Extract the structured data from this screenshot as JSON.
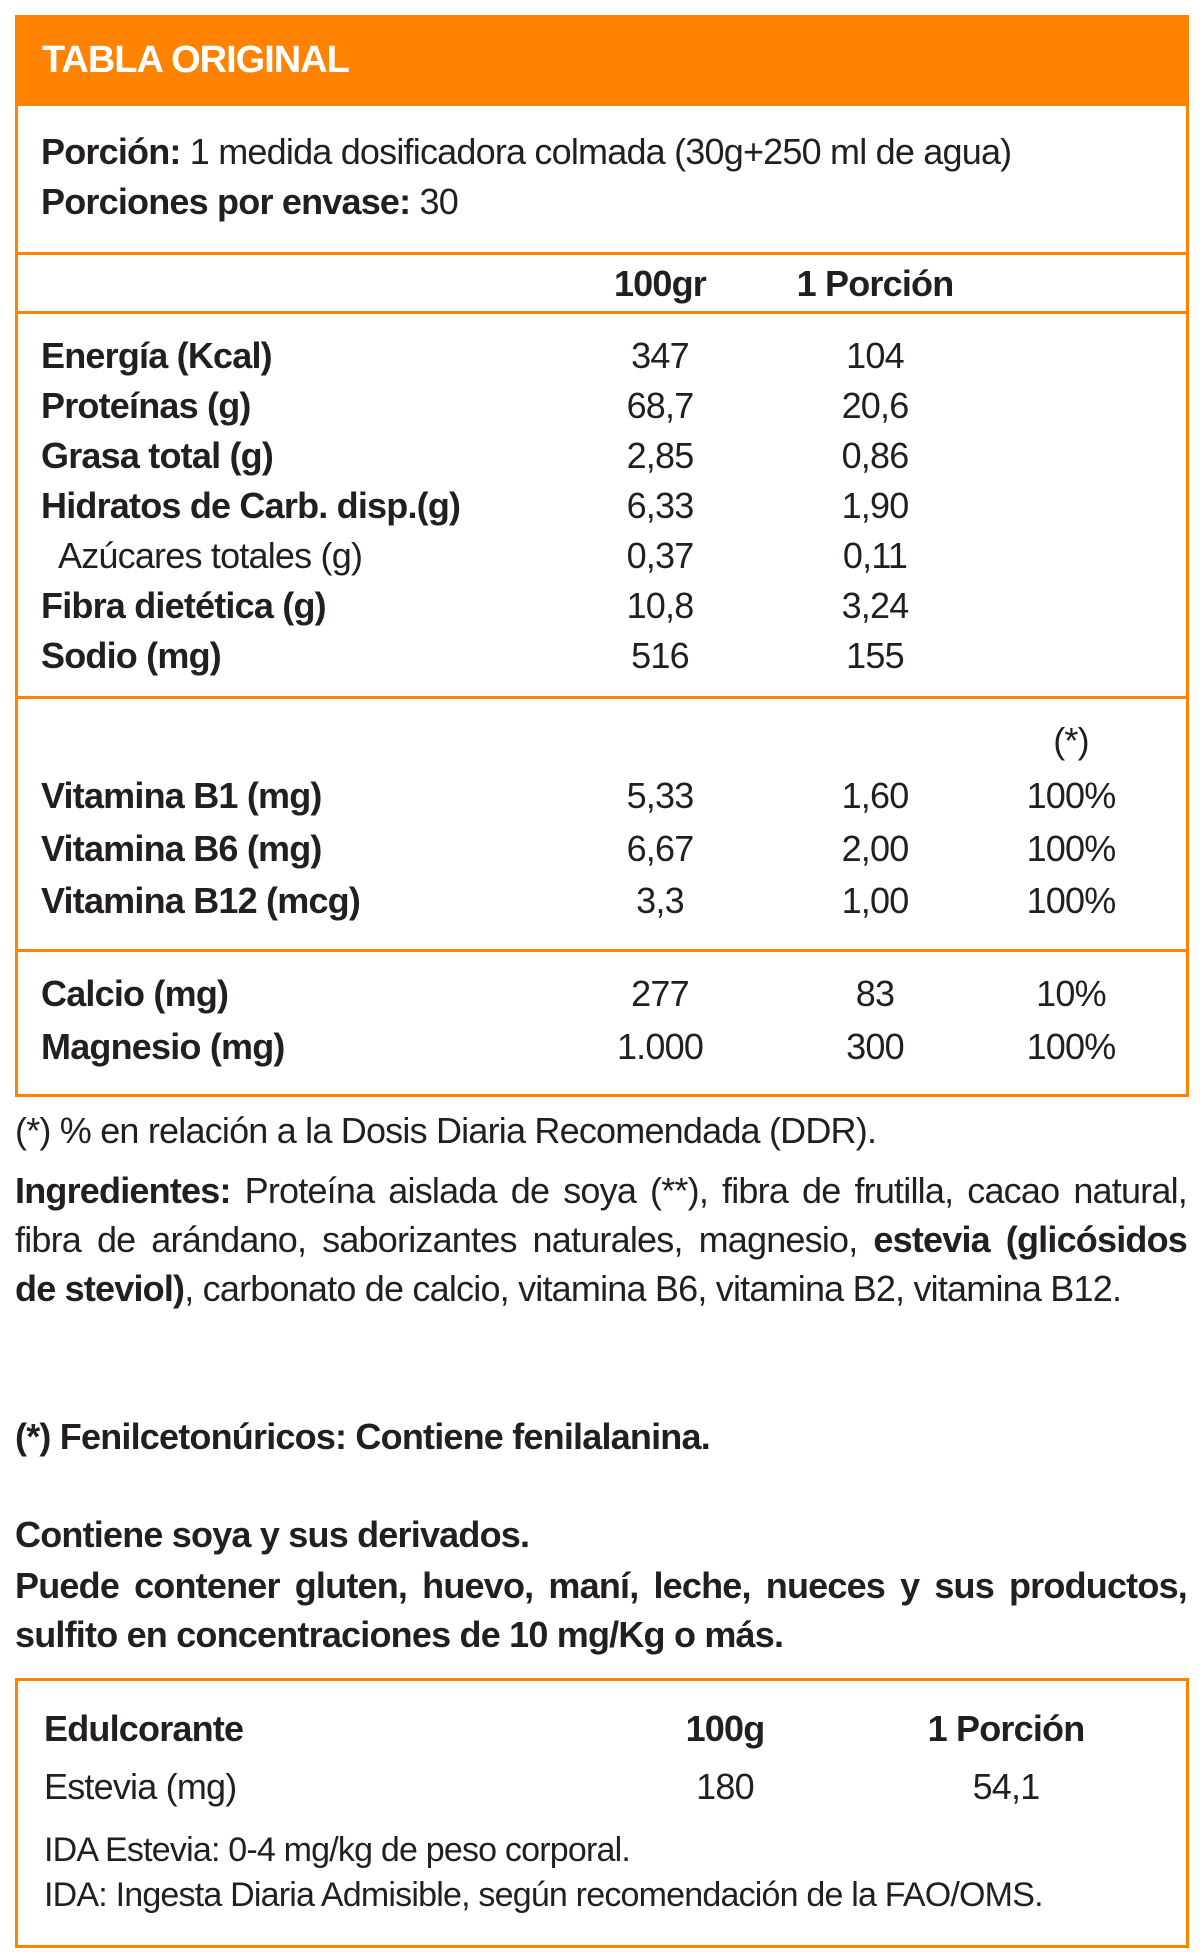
{
  "header": {
    "title": "TABLA ORIGINAL"
  },
  "serving": {
    "portion_label": "Porción:",
    "portion_value": " 1 medida dosificadora colmada (30g+250 ml de agua)",
    "per_pack_label": "Porciones por envase:",
    "per_pack_value": " 30"
  },
  "columns": {
    "per100": "100gr",
    "per_portion": "1 Porción",
    "ddr": "(*)"
  },
  "nutrients": [
    {
      "name": "Energía (Kcal)",
      "per100": "347",
      "portion": "104",
      "bold": true
    },
    {
      "name": "Proteínas (g)",
      "per100": "68,7",
      "portion": "20,6",
      "bold": true
    },
    {
      "name": "Grasa total (g)",
      "per100": "2,85",
      "portion": "0,86",
      "bold": true
    },
    {
      "name": "Hidratos de Carb. disp.(g)",
      "per100": "6,33",
      "portion": "1,90",
      "bold": true
    },
    {
      "name": "Azúcares totales (g)",
      "per100": "0,37",
      "portion": "0,11",
      "bold": false
    },
    {
      "name": "Fibra dietética (g)",
      "per100": "10,8",
      "portion": "3,24",
      "bold": true
    },
    {
      "name": "Sodio (mg)",
      "per100": "516",
      "portion": "155",
      "bold": true
    }
  ],
  "vitamins": [
    {
      "name": "Vitamina B1 (mg)",
      "per100": "5,33",
      "portion": "1,60",
      "ddr": "100%"
    },
    {
      "name": "Vitamina B6 (mg)",
      "per100": "6,67",
      "portion": "2,00",
      "ddr": "100%"
    },
    {
      "name": "Vitamina B12 (mcg)",
      "per100": "3,3",
      "portion": "1,00",
      "ddr": "100%"
    }
  ],
  "minerals": [
    {
      "name": "Calcio (mg)",
      "per100": "277",
      "portion": "83",
      "ddr": "10%"
    },
    {
      "name": "Magnesio (mg)",
      "per100": "1.000",
      "portion": "300",
      "ddr": "100%"
    }
  ],
  "footnote": "(*) % en relación a la Dosis Diaria Recomendada (DDR).",
  "ingredients": {
    "label": "Ingredientes:",
    "text1": "  Proteína aislada de soya (**), fibra de frutilla, cacao natural, fibra de arándano, saborizantes naturales, magnesio, ",
    "bold_part": "estevia (glicósidos de steviol)",
    "text2": ", carbonato de calcio, vitamina B6, vitamina B2, vitamina B12."
  },
  "warnings": {
    "phenyl": "(*) Fenilcetonúricos: Contiene fenilalanina.",
    "soy": "Contiene soya y sus derivados.",
    "may_contain": "Puede contener gluten, huevo, maní, leche, nueces y sus productos, sulfito en concentraciones de 10 mg/Kg o más."
  },
  "sweetener": {
    "header": "Edulcorante",
    "col1": "100g",
    "col2": "1 Porción",
    "name": "Estevia (mg)",
    "per100": "180",
    "portion": "54,1",
    "ida1": "IDA Estevia: 0-4 mg/kg de peso corporal.",
    "ida2": "IDA: Ingesta Diaria Admisible, según recomendación de la FAO/OMS."
  },
  "colors": {
    "accent": "#ff8200",
    "text": "#231f20"
  }
}
